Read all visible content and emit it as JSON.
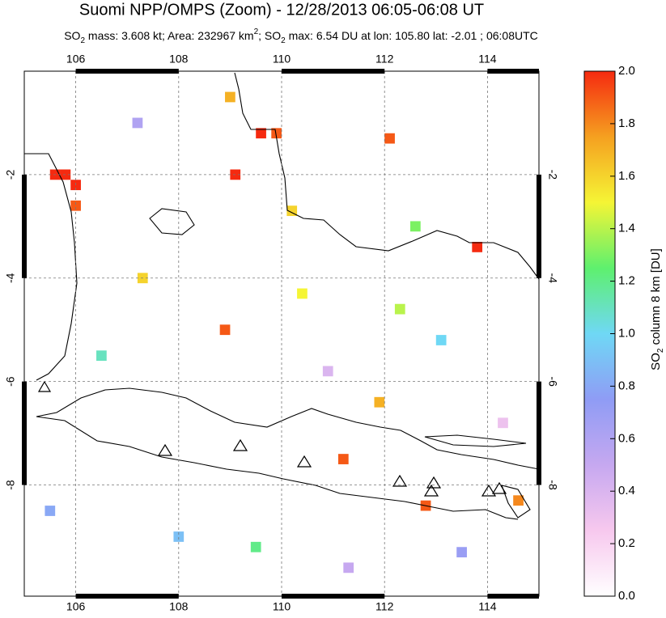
{
  "chart_data": {
    "type": "map",
    "title": "Suomi NPP/OMPS (Zoom) - 12/28/2013 06:05-06:08 UT",
    "subtitle_parts": [
      {
        "text": "SO",
        "style": "normal"
      },
      {
        "text": "2",
        "style": "sub"
      },
      {
        "text": " mass: 3.608 kt; Area: 232967 km",
        "style": "normal"
      },
      {
        "text": "2",
        "style": "sup"
      },
      {
        "text": "; SO",
        "style": "normal"
      },
      {
        "text": "2",
        "style": "sub"
      },
      {
        "text": " max: 6.54 DU at lon: 105.80 lat: -2.01 ; 06:08UTC",
        "style": "normal"
      }
    ],
    "xlim": [
      105,
      115
    ],
    "ylim": [
      -10.15,
      0
    ],
    "xticks": [
      106,
      108,
      110,
      112,
      114
    ],
    "yticks": [
      -2,
      -4,
      -6,
      -8
    ],
    "grid": true,
    "colorbar": {
      "label_parts": [
        {
          "text": "SO",
          "style": "normal"
        },
        {
          "text": "2",
          "style": "sub"
        },
        {
          "text": " column 8 km [DU]",
          "style": "normal"
        }
      ],
      "lim": [
        0,
        2
      ],
      "ticks": [
        {
          "value": 0,
          "label": "0.0"
        },
        {
          "value": 0.2,
          "label": "0.2"
        },
        {
          "value": 0.4,
          "label": "0.4"
        },
        {
          "value": 0.6,
          "label": "0.6"
        },
        {
          "value": 0.8,
          "label": "0.8"
        },
        {
          "value": 1,
          "label": "1.0"
        },
        {
          "value": 1.2,
          "label": "1.2"
        },
        {
          "value": 1.4,
          "label": "1.4"
        },
        {
          "value": 1.6,
          "label": "1.6"
        },
        {
          "value": 1.8,
          "label": "1.8"
        },
        {
          "value": 2,
          "label": "2.0"
        }
      ],
      "colormap": [
        "#ffffff",
        "#f7c8ee",
        "#c6a8f0",
        "#8f9cf5",
        "#6fd8f5",
        "#5ef06e",
        "#f5f535",
        "#f5a020",
        "#f52a10"
      ]
    },
    "pixels": [
      {
        "lon": 105.8,
        "lat": -2.0,
        "value": 2.0
      },
      {
        "lon": 106.0,
        "lat": -2.2,
        "value": 2.0
      },
      {
        "lon": 105.6,
        "lat": -2.0,
        "value": 2.0
      },
      {
        "lon": 106.0,
        "lat": -2.6,
        "value": 1.9
      },
      {
        "lon": 109.1,
        "lat": -2.0,
        "value": 2.0
      },
      {
        "lon": 109.6,
        "lat": -1.2,
        "value": 2.0
      },
      {
        "lon": 109.9,
        "lat": -1.2,
        "value": 1.9
      },
      {
        "lon": 109.0,
        "lat": -0.5,
        "value": 1.7
      },
      {
        "lon": 110.2,
        "lat": -2.7,
        "value": 1.6
      },
      {
        "lon": 112.8,
        "lat": -8.4,
        "value": 1.9
      },
      {
        "lon": 114.6,
        "lat": -8.3,
        "value": 1.8
      },
      {
        "lon": 113.8,
        "lat": -3.4,
        "value": 2.0
      },
      {
        "lon": 111.2,
        "lat": -7.5,
        "value": 1.9
      },
      {
        "lon": 112.1,
        "lat": -1.3,
        "value": 1.9
      },
      {
        "lon": 111.9,
        "lat": -6.4,
        "value": 1.7
      },
      {
        "lon": 108.9,
        "lat": -5.0,
        "value": 1.9
      },
      {
        "lon": 107.3,
        "lat": -4.0,
        "value": 1.6
      },
      {
        "lon": 110.4,
        "lat": -4.3,
        "value": 1.5
      },
      {
        "lon": 112.6,
        "lat": -3.0,
        "value": 1.3
      },
      {
        "lon": 106.5,
        "lat": -5.5,
        "value": 1.1
      },
      {
        "lon": 108.0,
        "lat": -9.0,
        "value": 0.9
      },
      {
        "lon": 113.5,
        "lat": -9.3,
        "value": 0.7
      },
      {
        "lon": 111.3,
        "lat": -9.6,
        "value": 0.5
      },
      {
        "lon": 107.2,
        "lat": -1.0,
        "value": 0.6
      },
      {
        "lon": 113.1,
        "lat": -5.2,
        "value": 1.0
      },
      {
        "lon": 110.9,
        "lat": -5.8,
        "value": 0.4
      },
      {
        "lon": 105.5,
        "lat": -8.5,
        "value": 0.8
      },
      {
        "lon": 114.3,
        "lat": -6.8,
        "value": 0.3
      },
      {
        "lon": 109.5,
        "lat": -9.2,
        "value": 1.2
      },
      {
        "lon": 112.3,
        "lat": -4.6,
        "value": 1.4
      }
    ]
  }
}
